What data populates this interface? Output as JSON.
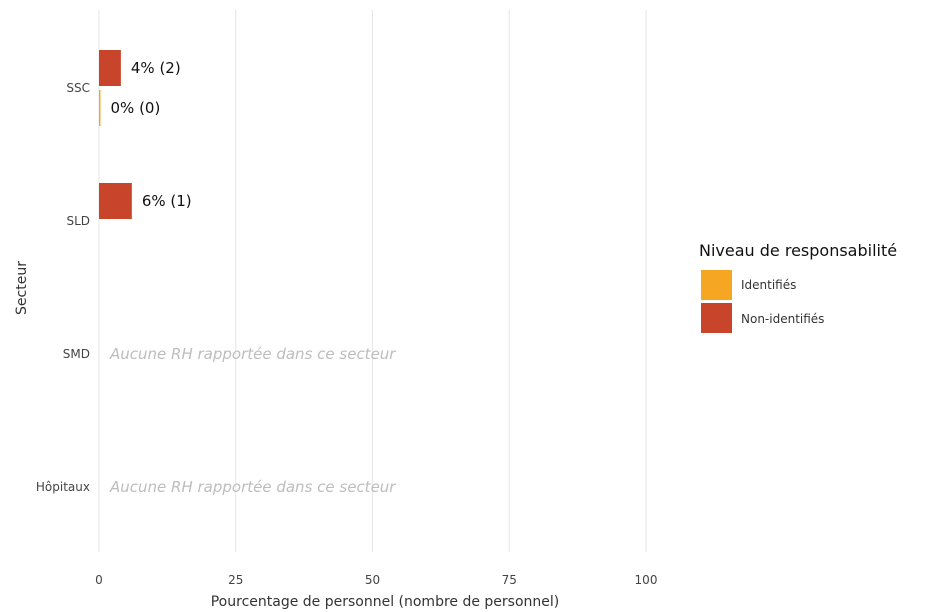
{
  "chart_data": {
    "type": "bar",
    "orientation": "horizontal",
    "xlabel": "Pourcentage de personnel (nombre de personnel)",
    "ylabel": "Secteur",
    "xlim": [
      0,
      100
    ],
    "x_ticks": [
      0,
      25,
      50,
      75,
      100
    ],
    "grid": true,
    "categories": [
      "SSC",
      "SLD",
      "SMD",
      "Hôpitaux"
    ],
    "series": [
      {
        "name": "Identifiés",
        "color": "#f5a623",
        "values": [
          0,
          null,
          null,
          null
        ],
        "labels": [
          "0% (0)",
          "",
          "",
          ""
        ]
      },
      {
        "name": "Non-identifiés",
        "color": "#c8442b",
        "values": [
          4,
          6,
          null,
          null
        ],
        "labels": [
          "4% (2)",
          "6% (1)",
          "",
          ""
        ]
      }
    ],
    "empty_notes": [
      "",
      "",
      "Aucune RH rapportée dans ce secteur",
      "Aucune RH rapportée dans ce secteur"
    ],
    "legend": {
      "title": "Niveau de responsabilité",
      "position": "right",
      "entries": [
        "Identifiés",
        "Non-identifiés"
      ]
    }
  }
}
